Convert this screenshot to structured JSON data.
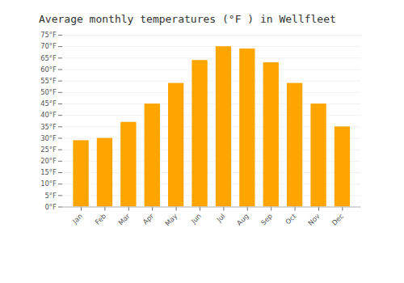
{
  "chart_data": {
    "type": "bar",
    "title": "Average monthly temperatures (°F ) in Wellfleet",
    "categories": [
      "Jan",
      "Feb",
      "Mar",
      "Apr",
      "May",
      "Jun",
      "Jul",
      "Aug",
      "Sep",
      "Oct",
      "Nov",
      "Dec"
    ],
    "values": [
      29,
      30,
      37,
      45,
      54,
      64,
      70,
      69,
      63,
      54,
      45,
      35
    ],
    "color": "#FFA500",
    "ylim": [
      0,
      75
    ],
    "yticks": [
      {
        "value": 0,
        "label": "0°F"
      },
      {
        "value": 5,
        "label": "5°F"
      },
      {
        "value": 10,
        "label": "10°F"
      },
      {
        "value": 15,
        "label": "15°F"
      },
      {
        "value": 20,
        "label": "20°F"
      },
      {
        "value": 25,
        "label": "25°F"
      },
      {
        "value": 30,
        "label": "30°F"
      },
      {
        "value": 35,
        "label": "35°F"
      },
      {
        "value": 40,
        "label": "40°F"
      },
      {
        "value": 45,
        "label": "45°F"
      },
      {
        "value": 50,
        "label": "50°F"
      },
      {
        "value": 55,
        "label": "55°F"
      },
      {
        "value": 60,
        "label": "60°F"
      },
      {
        "value": 65,
        "label": "65°F"
      },
      {
        "value": 70,
        "label": "70°F"
      },
      {
        "value": 75,
        "label": "75°F"
      }
    ],
    "grid": true
  }
}
